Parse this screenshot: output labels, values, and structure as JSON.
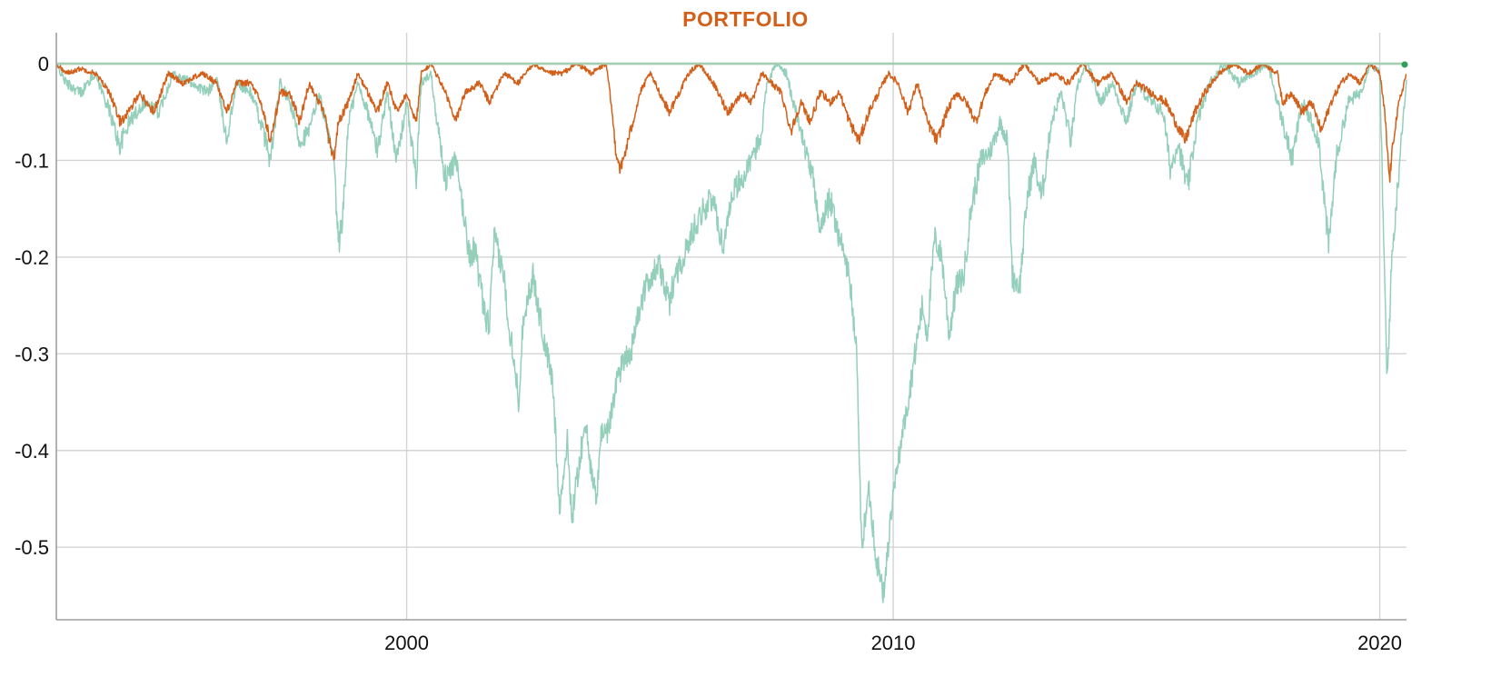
{
  "chart_data": {
    "type": "line",
    "title": "PORTFOLIO",
    "xlabel": "",
    "ylabel": "",
    "xlim": [
      1992.8,
      2020.55
    ],
    "ylim": [
      -0.575,
      0.032
    ],
    "x_ticks": [
      2000,
      2010,
      2020
    ],
    "x_tick_labels": [
      "2000",
      "2010",
      "2020"
    ],
    "y_ticks": [
      0,
      -0.1,
      -0.2,
      -0.3,
      -0.4,
      -0.5
    ],
    "y_tick_labels": [
      "0",
      "-0.1",
      "-0.2",
      "-0.3",
      "-0.4",
      "-0.5"
    ],
    "grid": true,
    "legend": "none",
    "colors": {
      "title": "#D2601A",
      "grid": "#D4D4D4",
      "axis": "#9E9E9E",
      "zero_line": "#A5CDB0",
      "endpoint_marker": "#2E9E5B"
    },
    "series": [
      {
        "color": "#94CFBA",
        "stroke_width": 1.5,
        "points": [
          [
            1992.8,
            0.0
          ],
          [
            1993.0,
            -0.02
          ],
          [
            1993.3,
            -0.03
          ],
          [
            1993.6,
            -0.01
          ],
          [
            1993.9,
            -0.05
          ],
          [
            1994.1,
            -0.085
          ],
          [
            1994.3,
            -0.06
          ],
          [
            1994.6,
            -0.04
          ],
          [
            1994.9,
            -0.05
          ],
          [
            1995.2,
            -0.01
          ],
          [
            1995.6,
            -0.02
          ],
          [
            1995.9,
            -0.03
          ],
          [
            1996.1,
            -0.015
          ],
          [
            1996.3,
            -0.08
          ],
          [
            1996.5,
            -0.02
          ],
          [
            1996.8,
            -0.03
          ],
          [
            1997.0,
            -0.06
          ],
          [
            1997.2,
            -0.1
          ],
          [
            1997.4,
            -0.02
          ],
          [
            1997.6,
            -0.04
          ],
          [
            1997.8,
            -0.08
          ],
          [
            1998.0,
            -0.07
          ],
          [
            1998.2,
            -0.03
          ],
          [
            1998.5,
            -0.1
          ],
          [
            1998.6,
            -0.19
          ],
          [
            1998.7,
            -0.15
          ],
          [
            1998.8,
            -0.06
          ],
          [
            1999.0,
            -0.02
          ],
          [
            1999.2,
            -0.05
          ],
          [
            1999.4,
            -0.09
          ],
          [
            1999.6,
            -0.03
          ],
          [
            1999.8,
            -0.1
          ],
          [
            2000.0,
            -0.04
          ],
          [
            2000.2,
            -0.12
          ],
          [
            2000.3,
            -0.02
          ],
          [
            2000.5,
            -0.01
          ],
          [
            2000.6,
            -0.05
          ],
          [
            2000.8,
            -0.12
          ],
          [
            2001.0,
            -0.1
          ],
          [
            2001.1,
            -0.13
          ],
          [
            2001.3,
            -0.2
          ],
          [
            2001.4,
            -0.19
          ],
          [
            2001.6,
            -0.26
          ],
          [
            2001.7,
            -0.27
          ],
          [
            2001.8,
            -0.18
          ],
          [
            2002.0,
            -0.22
          ],
          [
            2002.1,
            -0.27
          ],
          [
            2002.2,
            -0.3
          ],
          [
            2002.3,
            -0.35
          ],
          [
            2002.4,
            -0.26
          ],
          [
            2002.6,
            -0.22
          ],
          [
            2002.8,
            -0.28
          ],
          [
            2003.0,
            -0.33
          ],
          [
            2003.15,
            -0.46
          ],
          [
            2003.3,
            -0.39
          ],
          [
            2003.4,
            -0.47
          ],
          [
            2003.55,
            -0.41
          ],
          [
            2003.7,
            -0.37
          ],
          [
            2003.8,
            -0.43
          ],
          [
            2003.9,
            -0.45
          ],
          [
            2004.0,
            -0.38
          ],
          [
            2004.15,
            -0.38
          ],
          [
            2004.3,
            -0.33
          ],
          [
            2004.5,
            -0.3
          ],
          [
            2004.6,
            -0.3
          ],
          [
            2004.8,
            -0.25
          ],
          [
            2005.0,
            -0.22
          ],
          [
            2005.2,
            -0.21
          ],
          [
            2005.4,
            -0.25
          ],
          [
            2005.5,
            -0.22
          ],
          [
            2005.7,
            -0.2
          ],
          [
            2005.9,
            -0.17
          ],
          [
            2006.1,
            -0.15
          ],
          [
            2006.3,
            -0.14
          ],
          [
            2006.5,
            -0.19
          ],
          [
            2006.7,
            -0.13
          ],
          [
            2006.9,
            -0.12
          ],
          [
            2007.1,
            -0.1
          ],
          [
            2007.3,
            -0.07
          ],
          [
            2007.4,
            -0.02
          ],
          [
            2007.6,
            -0.0
          ],
          [
            2007.8,
            -0.01
          ],
          [
            2008.0,
            -0.05
          ],
          [
            2008.2,
            -0.09
          ],
          [
            2008.35,
            -0.12
          ],
          [
            2008.5,
            -0.17
          ],
          [
            2008.7,
            -0.14
          ],
          [
            2008.9,
            -0.18
          ],
          [
            2009.1,
            -0.22
          ],
          [
            2009.25,
            -0.3
          ],
          [
            2009.35,
            -0.5
          ],
          [
            2009.5,
            -0.44
          ],
          [
            2009.65,
            -0.51
          ],
          [
            2009.8,
            -0.55
          ],
          [
            2009.95,
            -0.47
          ],
          [
            2010.1,
            -0.41
          ],
          [
            2010.3,
            -0.35
          ],
          [
            2010.45,
            -0.3
          ],
          [
            2010.6,
            -0.25
          ],
          [
            2010.7,
            -0.28
          ],
          [
            2010.85,
            -0.18
          ],
          [
            2011.0,
            -0.2
          ],
          [
            2011.15,
            -0.28
          ],
          [
            2011.3,
            -0.23
          ],
          [
            2011.45,
            -0.22
          ],
          [
            2011.6,
            -0.15
          ],
          [
            2011.8,
            -0.1
          ],
          [
            2012.0,
            -0.09
          ],
          [
            2012.2,
            -0.06
          ],
          [
            2012.35,
            -0.08
          ],
          [
            2012.45,
            -0.22
          ],
          [
            2012.6,
            -0.23
          ],
          [
            2012.75,
            -0.14
          ],
          [
            2012.9,
            -0.1
          ],
          [
            2013.05,
            -0.14
          ],
          [
            2013.25,
            -0.06
          ],
          [
            2013.45,
            -0.03
          ],
          [
            2013.65,
            -0.08
          ],
          [
            2013.8,
            -0.02
          ],
          [
            2014.0,
            -0.0
          ],
          [
            2014.25,
            -0.04
          ],
          [
            2014.5,
            -0.02
          ],
          [
            2014.8,
            -0.06
          ],
          [
            2015.0,
            -0.02
          ],
          [
            2015.3,
            -0.04
          ],
          [
            2015.55,
            -0.05
          ],
          [
            2015.7,
            -0.11
          ],
          [
            2015.85,
            -0.08
          ],
          [
            2016.05,
            -0.13
          ],
          [
            2016.25,
            -0.06
          ],
          [
            2016.5,
            -0.02
          ],
          [
            2016.8,
            -0.0
          ],
          [
            2017.1,
            -0.02
          ],
          [
            2017.4,
            -0.01
          ],
          [
            2017.7,
            -0.0
          ],
          [
            2018.0,
            -0.06
          ],
          [
            2018.2,
            -0.1
          ],
          [
            2018.4,
            -0.04
          ],
          [
            2018.6,
            -0.06
          ],
          [
            2018.75,
            -0.08
          ],
          [
            2018.95,
            -0.19
          ],
          [
            2019.1,
            -0.1
          ],
          [
            2019.35,
            -0.04
          ],
          [
            2019.6,
            -0.03
          ],
          [
            2019.8,
            -0.0
          ],
          [
            2020.0,
            -0.01
          ],
          [
            2020.15,
            -0.33
          ],
          [
            2020.25,
            -0.2
          ],
          [
            2020.35,
            -0.14
          ],
          [
            2020.45,
            -0.07
          ],
          [
            2020.55,
            -0.02
          ]
        ]
      },
      {
        "color": "#D2601A",
        "stroke_width": 1.5,
        "points": [
          [
            1992.8,
            0.0
          ],
          [
            1993.0,
            -0.01
          ],
          [
            1993.3,
            -0.005
          ],
          [
            1993.6,
            -0.01
          ],
          [
            1993.9,
            -0.03
          ],
          [
            1994.1,
            -0.06
          ],
          [
            1994.3,
            -0.05
          ],
          [
            1994.5,
            -0.03
          ],
          [
            1994.8,
            -0.05
          ],
          [
            1995.1,
            -0.01
          ],
          [
            1995.4,
            -0.02
          ],
          [
            1995.8,
            -0.01
          ],
          [
            1996.1,
            -0.02
          ],
          [
            1996.3,
            -0.05
          ],
          [
            1996.5,
            -0.02
          ],
          [
            1996.8,
            -0.02
          ],
          [
            1997.0,
            -0.04
          ],
          [
            1997.2,
            -0.08
          ],
          [
            1997.4,
            -0.03
          ],
          [
            1997.6,
            -0.03
          ],
          [
            1997.8,
            -0.06
          ],
          [
            1998.0,
            -0.02
          ],
          [
            1998.3,
            -0.05
          ],
          [
            1998.5,
            -0.1
          ],
          [
            1998.6,
            -0.06
          ],
          [
            1998.8,
            -0.04
          ],
          [
            1999.0,
            -0.01
          ],
          [
            1999.2,
            -0.03
          ],
          [
            1999.4,
            -0.05
          ],
          [
            1999.6,
            -0.02
          ],
          [
            1999.8,
            -0.05
          ],
          [
            2000.0,
            -0.03
          ],
          [
            2000.2,
            -0.06
          ],
          [
            2000.3,
            -0.01
          ],
          [
            2000.5,
            -0.0
          ],
          [
            2000.8,
            -0.03
          ],
          [
            2001.0,
            -0.06
          ],
          [
            2001.2,
            -0.03
          ],
          [
            2001.5,
            -0.02
          ],
          [
            2001.7,
            -0.04
          ],
          [
            2002.0,
            -0.01
          ],
          [
            2002.3,
            -0.02
          ],
          [
            2002.6,
            -0.0
          ],
          [
            2002.9,
            -0.01
          ],
          [
            2003.2,
            -0.01
          ],
          [
            2003.5,
            -0.0
          ],
          [
            2003.8,
            -0.01
          ],
          [
            2004.1,
            -0.0
          ],
          [
            2004.2,
            -0.04
          ],
          [
            2004.3,
            -0.09
          ],
          [
            2004.4,
            -0.11
          ],
          [
            2004.6,
            -0.07
          ],
          [
            2004.8,
            -0.03
          ],
          [
            2005.0,
            -0.01
          ],
          [
            2005.2,
            -0.03
          ],
          [
            2005.4,
            -0.05
          ],
          [
            2005.6,
            -0.03
          ],
          [
            2005.8,
            -0.01
          ],
          [
            2006.0,
            -0.0
          ],
          [
            2006.3,
            -0.02
          ],
          [
            2006.6,
            -0.05
          ],
          [
            2006.9,
            -0.03
          ],
          [
            2007.1,
            -0.04
          ],
          [
            2007.3,
            -0.01
          ],
          [
            2007.5,
            -0.02
          ],
          [
            2007.7,
            -0.03
          ],
          [
            2007.9,
            -0.07
          ],
          [
            2008.1,
            -0.04
          ],
          [
            2008.3,
            -0.06
          ],
          [
            2008.5,
            -0.03
          ],
          [
            2008.7,
            -0.04
          ],
          [
            2008.9,
            -0.03
          ],
          [
            2009.1,
            -0.06
          ],
          [
            2009.3,
            -0.08
          ],
          [
            2009.5,
            -0.05
          ],
          [
            2009.7,
            -0.03
          ],
          [
            2009.9,
            -0.01
          ],
          [
            2010.1,
            -0.02
          ],
          [
            2010.3,
            -0.05
          ],
          [
            2010.5,
            -0.02
          ],
          [
            2010.7,
            -0.06
          ],
          [
            2010.9,
            -0.08
          ],
          [
            2011.1,
            -0.05
          ],
          [
            2011.3,
            -0.03
          ],
          [
            2011.5,
            -0.04
          ],
          [
            2011.7,
            -0.06
          ],
          [
            2011.9,
            -0.03
          ],
          [
            2012.1,
            -0.01
          ],
          [
            2012.4,
            -0.02
          ],
          [
            2012.7,
            -0.0
          ],
          [
            2013.0,
            -0.02
          ],
          [
            2013.3,
            -0.01
          ],
          [
            2013.6,
            -0.02
          ],
          [
            2013.9,
            -0.0
          ],
          [
            2014.2,
            -0.02
          ],
          [
            2014.5,
            -0.01
          ],
          [
            2014.8,
            -0.04
          ],
          [
            2015.0,
            -0.02
          ],
          [
            2015.3,
            -0.03
          ],
          [
            2015.6,
            -0.04
          ],
          [
            2015.8,
            -0.06
          ],
          [
            2016.0,
            -0.08
          ],
          [
            2016.2,
            -0.05
          ],
          [
            2016.4,
            -0.03
          ],
          [
            2016.7,
            -0.01
          ],
          [
            2017.0,
            -0.0
          ],
          [
            2017.3,
            -0.01
          ],
          [
            2017.6,
            -0.0
          ],
          [
            2017.9,
            -0.01
          ],
          [
            2018.0,
            -0.04
          ],
          [
            2018.2,
            -0.03
          ],
          [
            2018.4,
            -0.05
          ],
          [
            2018.6,
            -0.04
          ],
          [
            2018.8,
            -0.07
          ],
          [
            2019.0,
            -0.04
          ],
          [
            2019.2,
            -0.02
          ],
          [
            2019.4,
            -0.01
          ],
          [
            2019.6,
            -0.02
          ],
          [
            2019.8,
            -0.0
          ],
          [
            2020.0,
            -0.01
          ],
          [
            2020.1,
            -0.05
          ],
          [
            2020.2,
            -0.12
          ],
          [
            2020.3,
            -0.07
          ],
          [
            2020.4,
            -0.04
          ],
          [
            2020.55,
            -0.01
          ]
        ]
      }
    ]
  }
}
